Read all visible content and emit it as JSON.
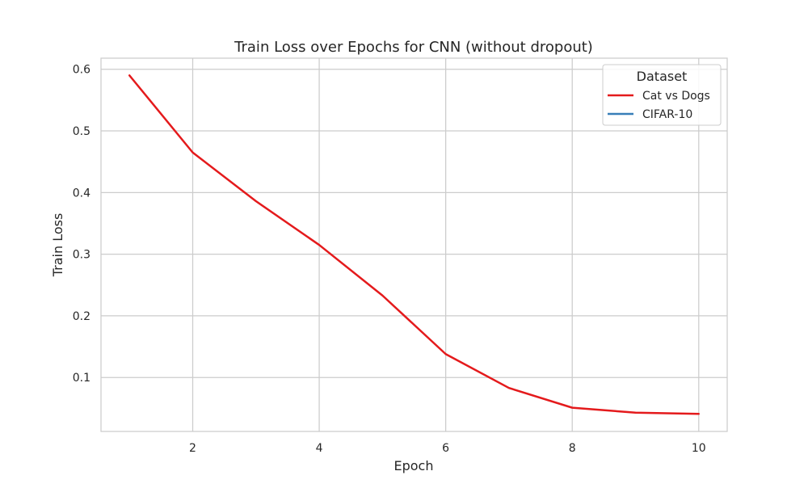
{
  "chart_data": {
    "type": "line",
    "title": "Train Loss over Epochs for CNN (without dropout)",
    "xlabel": "Epoch",
    "ylabel": "Train Loss",
    "xlim": [
      0.55,
      10.45
    ],
    "ylim": [
      0.0125,
      0.618
    ],
    "xticks": [
      2,
      4,
      6,
      8,
      10
    ],
    "xtick_labels": [
      "2",
      "4",
      "6",
      "8",
      "10"
    ],
    "yticks": [
      0.1,
      0.2,
      0.3,
      0.4,
      0.5,
      0.6
    ],
    "ytick_labels": [
      "0.1",
      "0.2",
      "0.3",
      "0.4",
      "0.5",
      "0.6"
    ],
    "grid": true,
    "legend": {
      "title": "Dataset",
      "placement": "top-right",
      "entries": [
        {
          "name": "Cat vs Dogs",
          "color": "#e41a1c"
        },
        {
          "name": "CIFAR-10",
          "color": "#377eb8"
        }
      ]
    },
    "series": [
      {
        "name": "Cat vs Dogs",
        "color": "#e41a1c",
        "x": [
          1,
          2,
          3,
          4,
          5,
          6,
          7,
          8,
          9,
          10
        ],
        "values": [
          0.59,
          0.465,
          0.386,
          0.315,
          0.233,
          0.138,
          0.083,
          0.051,
          0.043,
          0.041
        ]
      },
      {
        "name": "CIFAR-10",
        "color": "#377eb8",
        "x": [],
        "values": []
      }
    ]
  }
}
